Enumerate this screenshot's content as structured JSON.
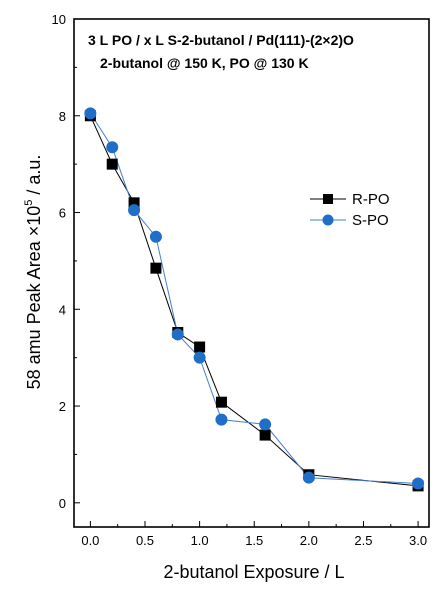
{
  "chart_data": {
    "type": "line",
    "title": "3 L PO / x L S-2-butanol / Pd(111)-(2×2)O",
    "subtitle": "2-butanol @ 150 K, PO @ 130 K",
    "xlabel": "2-butanol Exposure / L",
    "ylabel_prefix": "58 amu Peak Area ×10",
    "ylabel_sup": "5",
    "ylabel_suffix": " / a.u.",
    "xlim": [
      -0.15,
      3.1
    ],
    "ylim": [
      -0.5,
      10
    ],
    "xticks": [
      0.0,
      0.5,
      1.0,
      1.5,
      2.0,
      2.5,
      3.0
    ],
    "xtick_labels": [
      "0.0",
      "0.5",
      "1.0",
      "1.5",
      "2.0",
      "2.5",
      "3.0"
    ],
    "yticks": [
      0,
      2,
      4,
      6,
      8,
      10
    ],
    "ytick_labels": [
      "0",
      "2",
      "4",
      "6",
      "8",
      "10"
    ],
    "grid": false,
    "legend_position": "right",
    "series": [
      {
        "name": "R-PO",
        "marker": "square",
        "color": "#000000",
        "line_color": "#000000",
        "x": [
          0.0,
          0.2,
          0.4,
          0.6,
          0.8,
          1.0,
          1.2,
          1.6,
          2.0,
          3.0
        ],
        "y": [
          8.0,
          7.0,
          6.2,
          4.85,
          3.52,
          3.22,
          2.08,
          1.4,
          0.58,
          0.35
        ]
      },
      {
        "name": "S-PO",
        "marker": "circle",
        "color": "#1f6fc9",
        "line_color": "#4a7fc8",
        "x": [
          0.0,
          0.2,
          0.4,
          0.6,
          0.8,
          1.0,
          1.2,
          1.6,
          2.0,
          3.0
        ],
        "y": [
          8.05,
          7.35,
          6.05,
          5.5,
          3.48,
          3.0,
          1.72,
          1.62,
          0.52,
          0.4
        ]
      }
    ]
  }
}
